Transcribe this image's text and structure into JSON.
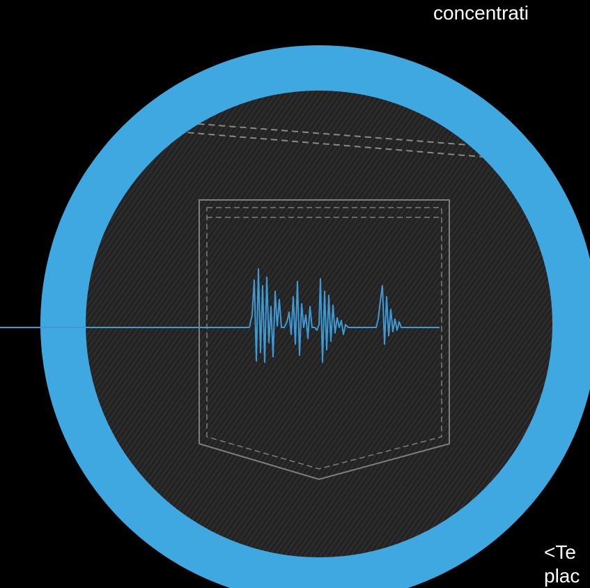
{
  "captions": {
    "top_text": "concentrati",
    "bottom_line1": "<Te",
    "bottom_line2": "plac"
  },
  "colors": {
    "background": "#000000",
    "ring": "#3fa8e0",
    "denim": "#262626",
    "stitch": "#8a8a8a",
    "wave": "#3d9ad4"
  },
  "icons": {
    "pocket": "jeans-pocket-icon",
    "waveform": "audio-waveform-icon"
  }
}
